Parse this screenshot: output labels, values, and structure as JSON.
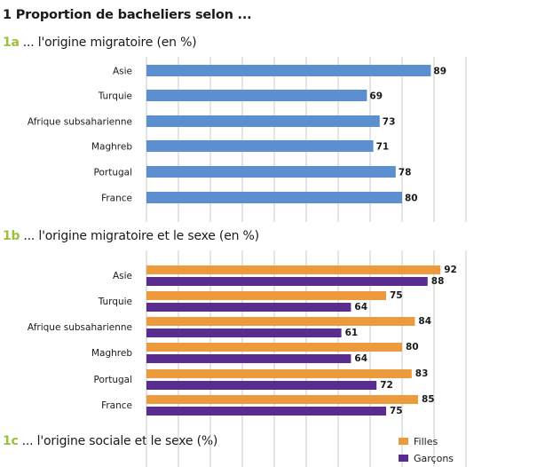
{
  "title": "1 Proportion de bacheliers selon ...",
  "colors": {
    "blue": "#5b8fcf",
    "orange": "#ed9a3d",
    "purple": "#5b2c8f",
    "accent": "#9bc03c",
    "grid": "#c8c8c8"
  },
  "chart_data": [
    {
      "type": "bar",
      "orientation": "horizontal",
      "number": "1a",
      "title": "... l'origine migratoire (en %)",
      "categories": [
        "Asie",
        "Turquie",
        "Afrique subsaharienne",
        "Maghreb",
        "Portugal",
        "France"
      ],
      "values": [
        89,
        69,
        73,
        71,
        78,
        80
      ],
      "xlim": [
        0,
        100
      ],
      "grid": true
    },
    {
      "type": "bar",
      "orientation": "horizontal",
      "number": "1b",
      "title": "... l'origine migratoire et le sexe (en %)",
      "categories": [
        "Asie",
        "Turquie",
        "Afrique subsaharienne",
        "Maghreb",
        "Portugal",
        "France"
      ],
      "series": [
        {
          "name": "Filles",
          "values": [
            92,
            75,
            84,
            80,
            83,
            85
          ]
        },
        {
          "name": "Garçons",
          "values": [
            88,
            64,
            61,
            64,
            72,
            75
          ]
        }
      ],
      "xlim": [
        0,
        100
      ],
      "grid": true
    },
    {
      "type": "bar",
      "number": "1c",
      "title": "... l'origine sociale et le sexe (%)"
    }
  ],
  "legend": {
    "filles": "Filles",
    "garcons": "Garçons"
  }
}
